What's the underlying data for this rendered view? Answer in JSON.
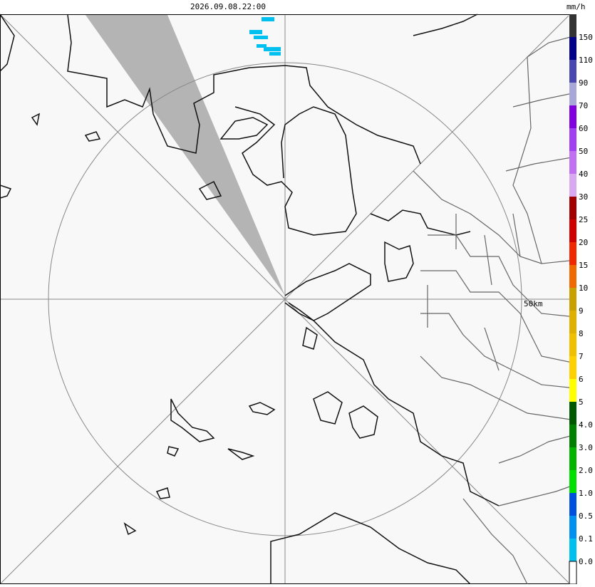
{
  "header": {
    "timestamp": "2026.09.08.22:00"
  },
  "map": {
    "range_label": "50km"
  },
  "legend": {
    "unit": "mm/h",
    "colors": [
      "#333333",
      "#000088",
      "#4848b0",
      "#a8a8d8",
      "#8000e0",
      "#a040f0",
      "#c070f0",
      "#d8a8f0",
      "#a00000",
      "#d00000",
      "#f02800",
      "#f06800",
      "#c8a000",
      "#e0b000",
      "#f0c000",
      "#ffd000",
      "#ffff00",
      "#005800",
      "#008000",
      "#00b400",
      "#00e000",
      "#0050e0",
      "#0090f0",
      "#00c0f0",
      "#ffffff"
    ],
    "labels": [
      "150",
      "110",
      "90",
      "70",
      "60",
      "50",
      "40",
      "30",
      "25",
      "20",
      "15",
      "10",
      "9",
      "8",
      "7",
      "6",
      "5",
      "4.0",
      "3.0",
      "2.0",
      "1.0",
      "0.5",
      "0.1",
      "0.0"
    ]
  }
}
